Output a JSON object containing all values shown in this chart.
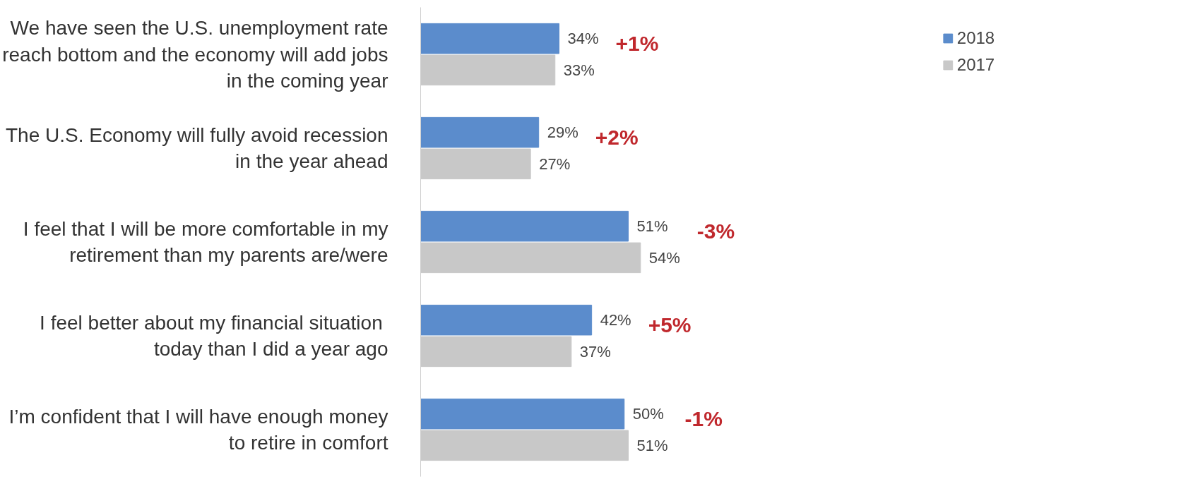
{
  "chart_data": {
    "type": "bar",
    "orientation": "horizontal",
    "legend": "right",
    "grid": false,
    "categories": [
      "We have seen the U.S. unemployment rate reach bottom and the economy will add jobs in the coming year",
      "The U.S. Economy will fully avoid recession in the year ahead",
      "I feel that I will be more comfortable in my retirement than my parents are/were",
      "I feel better about  my financial situation today than I did a year ago",
      "I’m confident that I will have enough money to retire in comfort"
    ],
    "series": [
      {
        "name": "2018",
        "color": "#5b8ccc",
        "values": [
          34,
          29,
          51,
          42,
          50
        ],
        "value_labels": [
          "34%",
          "29%",
          "51%",
          "42%",
          "50%"
        ]
      },
      {
        "name": "2017",
        "color": "#c8c8c8",
        "values": [
          33,
          27,
          54,
          37,
          51
        ],
        "value_labels": [
          "33%",
          "27%",
          "54%",
          "37%",
          "51%"
        ]
      }
    ],
    "annotations": [
      "+1%",
      "+2%",
      "-3%",
      "+5%",
      "-1%"
    ]
  }
}
